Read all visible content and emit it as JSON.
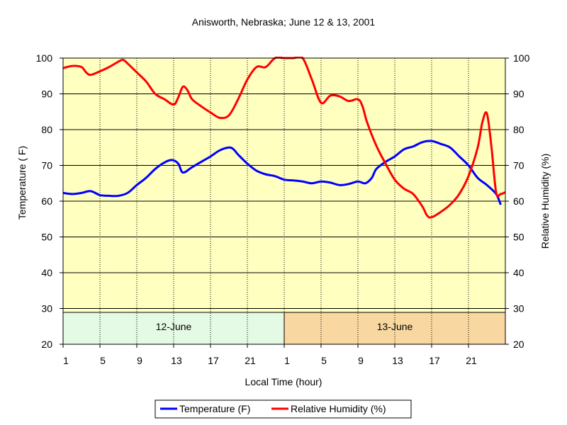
{
  "chart_data": {
    "type": "line",
    "title": "Anisworth, Nebraska; June 12 & 13, 2001",
    "xlabel": "Local Time (hour)",
    "ylabel": "Temperature ( F)",
    "y2label": "Relative Humidity (%)",
    "ylim": [
      20,
      100
    ],
    "y2lim": [
      20,
      100
    ],
    "y_ticks": [
      "20",
      "30",
      "40",
      "50",
      "60",
      "70",
      "80",
      "90",
      "100"
    ],
    "x_ticks": [
      "1",
      "5",
      "9",
      "13",
      "17",
      "21",
      "1",
      "5",
      "9",
      "13",
      "17",
      "21"
    ],
    "xlim": [
      1,
      49
    ],
    "grid": true,
    "plot_background": "#ffffc0",
    "day_bands": [
      {
        "label": "12-June",
        "from": 1,
        "to": 25,
        "color": "#e4fae4"
      },
      {
        "label": "13-June",
        "from": 25,
        "to": 49,
        "color": "#f8d8a0"
      }
    ],
    "series": [
      {
        "name": "Temperature (F)",
        "color": "#0000ff",
        "axis": "left",
        "points": [
          [
            1,
            62.3
          ],
          [
            2,
            62
          ],
          [
            3,
            62.3
          ],
          [
            4,
            62.8
          ],
          [
            5,
            61.7
          ],
          [
            6,
            61.5
          ],
          [
            7,
            61.5
          ],
          [
            8,
            62.3
          ],
          [
            9,
            64.5
          ],
          [
            10,
            66.5
          ],
          [
            11,
            69
          ],
          [
            12,
            70.8
          ],
          [
            12.8,
            71.5
          ],
          [
            13.5,
            70.5
          ],
          [
            14,
            68
          ],
          [
            15,
            69.5
          ],
          [
            16,
            71
          ],
          [
            17,
            72.5
          ],
          [
            18,
            74.2
          ],
          [
            19,
            75
          ],
          [
            19.5,
            74.5
          ],
          [
            20,
            73
          ],
          [
            21,
            70.5
          ],
          [
            22,
            68.5
          ],
          [
            23,
            67.5
          ],
          [
            24,
            67
          ],
          [
            25,
            66
          ],
          [
            26,
            65.8
          ],
          [
            27,
            65.5
          ],
          [
            28,
            65
          ],
          [
            29,
            65.5
          ],
          [
            30,
            65.2
          ],
          [
            31,
            64.5
          ],
          [
            32,
            64.8
          ],
          [
            33,
            65.5
          ],
          [
            33.8,
            65
          ],
          [
            34.5,
            66.5
          ],
          [
            35,
            69
          ],
          [
            36,
            71
          ],
          [
            37,
            72.5
          ],
          [
            38,
            74.5
          ],
          [
            39,
            75.3
          ],
          [
            40,
            76.5
          ],
          [
            41,
            76.8
          ],
          [
            42,
            76
          ],
          [
            43,
            75
          ],
          [
            44,
            72.5
          ],
          [
            45,
            70
          ],
          [
            46,
            66.5
          ],
          [
            47,
            64.5
          ],
          [
            48,
            62
          ],
          [
            48.5,
            59
          ]
        ]
      },
      {
        "name": "Relative Humidity (%)",
        "color": "#ff0000",
        "axis": "right",
        "points": [
          [
            1,
            97.2
          ],
          [
            2,
            97.8
          ],
          [
            3,
            97.5
          ],
          [
            3.5,
            96
          ],
          [
            4,
            95.3
          ],
          [
            5,
            96.3
          ],
          [
            6,
            97.5
          ],
          [
            7,
            99
          ],
          [
            7.5,
            99.5
          ],
          [
            8,
            98.5
          ],
          [
            9,
            96
          ],
          [
            10,
            93.5
          ],
          [
            11,
            90
          ],
          [
            12,
            88.5
          ],
          [
            13,
            87
          ],
          [
            13.5,
            89
          ],
          [
            14,
            92
          ],
          [
            14.5,
            91
          ],
          [
            15,
            88.5
          ],
          [
            16,
            86.5
          ],
          [
            17,
            84.8
          ],
          [
            18,
            83.3
          ],
          [
            19,
            84
          ],
          [
            20,
            88.5
          ],
          [
            21,
            94
          ],
          [
            22,
            97.5
          ],
          [
            23,
            97.5
          ],
          [
            24,
            100
          ],
          [
            25,
            100
          ],
          [
            26,
            100
          ],
          [
            27,
            100
          ],
          [
            28,
            94
          ],
          [
            29,
            87.5
          ],
          [
            30,
            89.5
          ],
          [
            31,
            89.3
          ],
          [
            32,
            88
          ],
          [
            33,
            88.5
          ],
          [
            33.5,
            86.5
          ],
          [
            34,
            82
          ],
          [
            35,
            75.5
          ],
          [
            36,
            70.5
          ],
          [
            37,
            66
          ],
          [
            38,
            63.5
          ],
          [
            39,
            62
          ],
          [
            40,
            58.5
          ],
          [
            40.5,
            56
          ],
          [
            41,
            55.5
          ],
          [
            42,
            57
          ],
          [
            43,
            59
          ],
          [
            44,
            62
          ],
          [
            45,
            67
          ],
          [
            46,
            75
          ],
          [
            46.5,
            82
          ],
          [
            47,
            84.5
          ],
          [
            47.5,
            75
          ],
          [
            48,
            62.5
          ],
          [
            48.5,
            62
          ],
          [
            49,
            62.5
          ]
        ]
      }
    ]
  }
}
